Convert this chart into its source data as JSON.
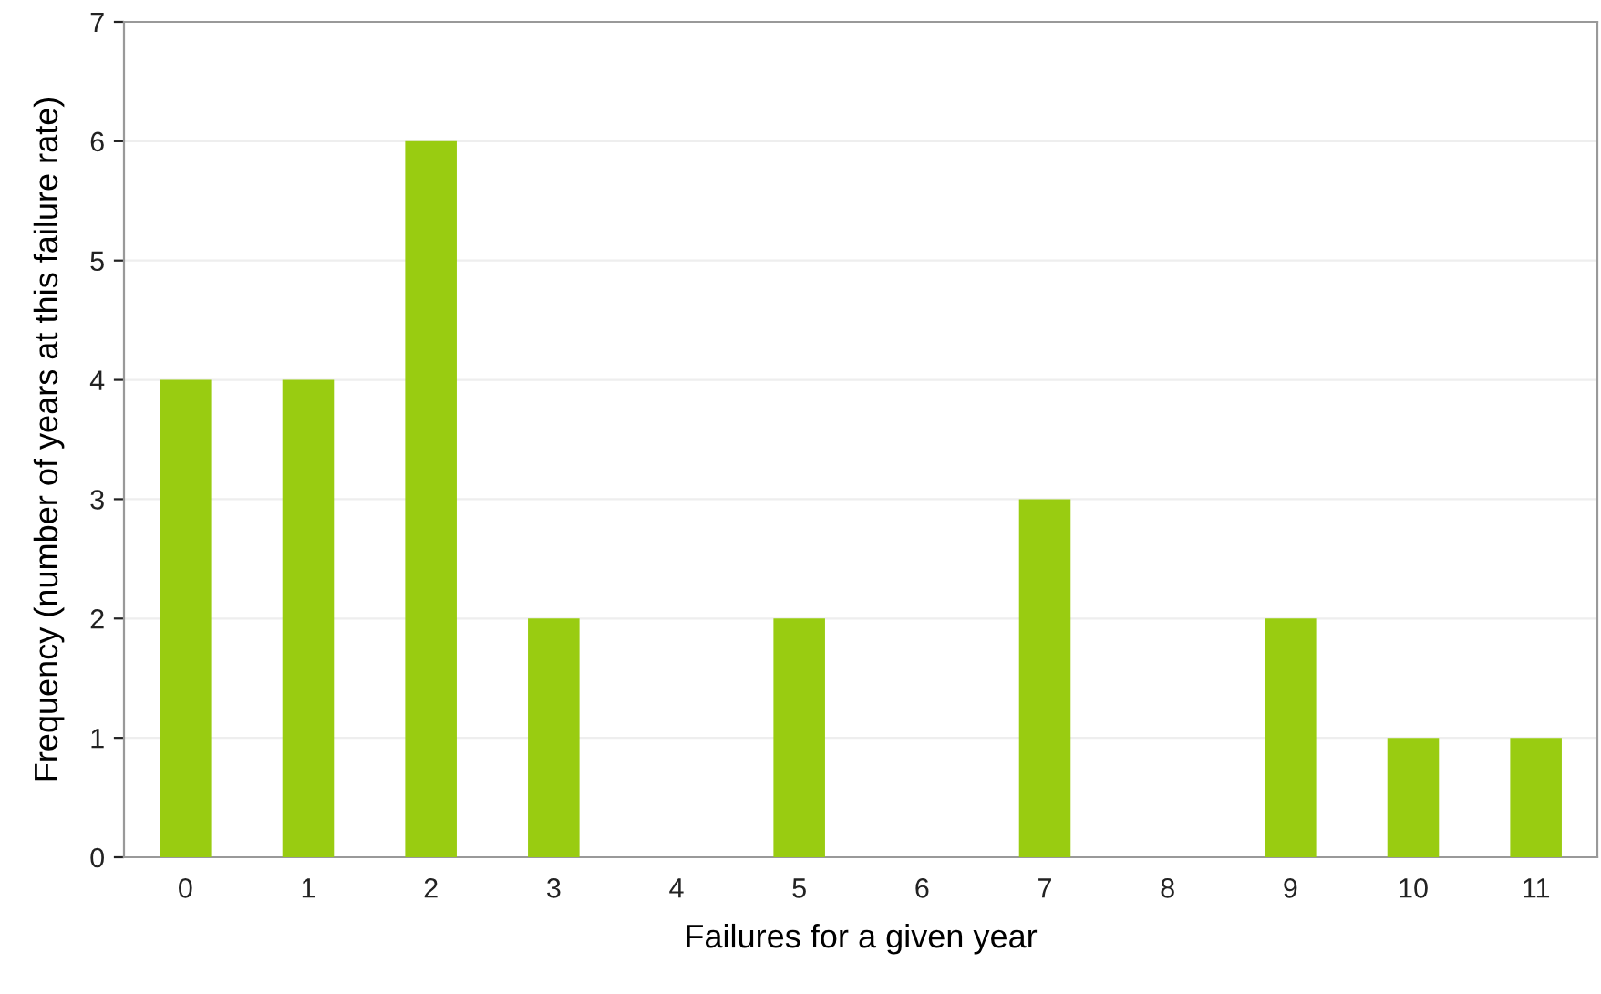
{
  "chart_data": {
    "type": "bar",
    "xlabel": "Failures for a given year",
    "ylabel": "Frequency (number of years at this failure rate)",
    "categories": [
      "0",
      "1",
      "2",
      "3",
      "4",
      "5",
      "6",
      "7",
      "8",
      "9",
      "10",
      "11"
    ],
    "values": [
      4,
      4,
      6,
      2,
      0,
      2,
      0,
      3,
      0,
      2,
      1,
      1
    ],
    "color": "#99cc11",
    "ylim": [
      0,
      7
    ],
    "yticks": [
      0,
      1,
      2,
      3,
      4,
      5,
      6,
      7
    ],
    "grid": "y",
    "legend": false
  }
}
